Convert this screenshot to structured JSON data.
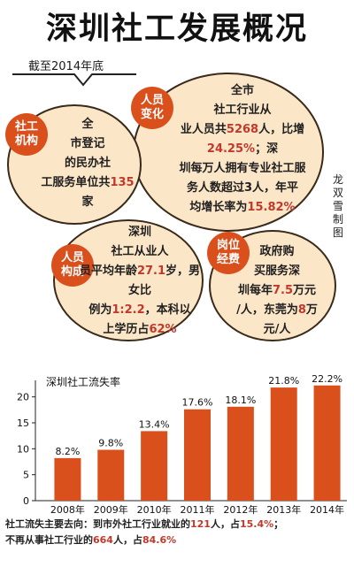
{
  "page": {
    "title": "深圳社工发展概况",
    "subtitle": "截至2014年底",
    "credit": "龙双雪 制图"
  },
  "circles": {
    "personnel_change": {
      "badge": "人员\n变化",
      "pre": "全市\n社工行业从\n业人员共",
      "v1": "5268",
      "mid1": "人，比增",
      "v2": "24.25%",
      "mid2": "；深\n圳每万人拥有专业社工服\n务人数超过3人，年平\n均增长率为",
      "v3": "15.82%"
    },
    "organizations": {
      "badge": "社工\n机构",
      "pre": "全\n市登记\n的民办社\n工服务单位共",
      "v1": "135",
      "post": "家"
    },
    "composition": {
      "badge": "人员\n构成",
      "pre": "深圳\n社工从业人\n员平均年龄",
      "v1": "27.1",
      "mid1": "岁，男女比\n例为",
      "v2": "1:2.2",
      "mid2": "，本科以\n上学历占",
      "v3": "62%"
    },
    "funding": {
      "badge": "岗位\n经费",
      "pre": "政府购\n买服务深\n圳每年",
      "v1": "7.5",
      "mid1": "万元\n/人，东莞为",
      "v2": "8",
      "post": "万\n元/人"
    }
  },
  "chart_data": {
    "type": "bar",
    "title": "深圳社工流失率",
    "categories": [
      "2008年",
      "2009年",
      "2010年",
      "2011年",
      "2012年",
      "2013年",
      "2014年"
    ],
    "values": [
      8.2,
      9.8,
      13.4,
      17.6,
      18.1,
      21.8,
      22.2
    ],
    "value_labels": [
      "8.2%",
      "9.8%",
      "13.4%",
      "17.6%",
      "18.1%",
      "21.8%",
      "22.2%"
    ],
    "yticks": [
      0,
      5,
      10,
      15,
      20
    ],
    "ylim": [
      0,
      22.5
    ],
    "bar_color": "#d9501c",
    "grid": false
  },
  "footnote": {
    "p1": "社工流失主要去向：到市外社工行业就业的",
    "v1": "121",
    "p2": "人，占",
    "v2": "15.4%",
    "p3": "；",
    "p4": "不再从事社工行业的",
    "v3": "664",
    "p5": "人，占",
    "v4": "84.6%"
  }
}
